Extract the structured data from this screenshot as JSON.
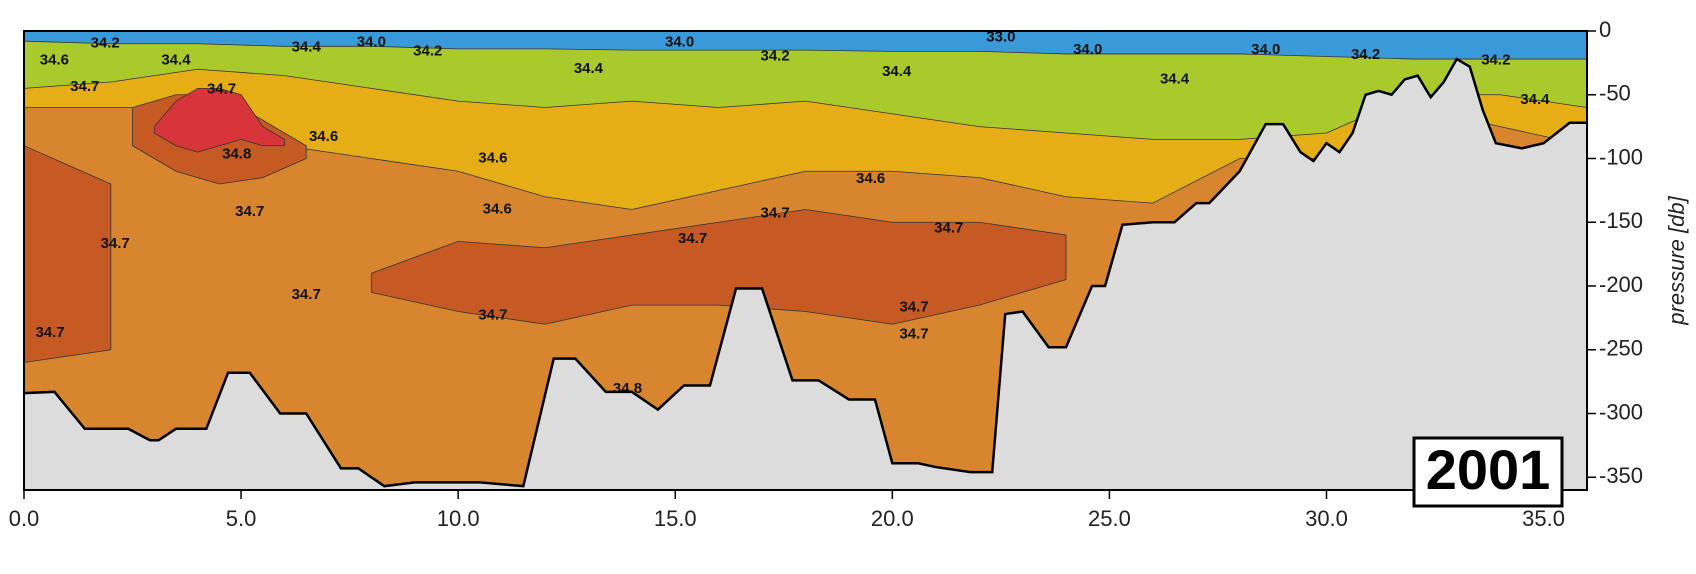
{
  "chart_data": {
    "type": "contour",
    "y_label": "pressure [db]",
    "annotation": "2001",
    "xlim": [
      0,
      36
    ],
    "ylim": [
      -360,
      0
    ],
    "xticks": [
      {
        "value": 0,
        "label": "0.0"
      },
      {
        "value": 5,
        "label": "5.0"
      },
      {
        "value": 10,
        "label": "10.0"
      },
      {
        "value": 15,
        "label": "15.0"
      },
      {
        "value": 20,
        "label": "20.0"
      },
      {
        "value": 25,
        "label": "25.0"
      },
      {
        "value": 30,
        "label": "30.0"
      },
      {
        "value": 35,
        "label": "35.0"
      }
    ],
    "yticks": [
      0,
      -50,
      -100,
      -150,
      -200,
      -250,
      -300,
      -350
    ],
    "fill_color": "#d7862f",
    "layers": {
      "x": [
        0,
        2,
        4,
        6,
        8,
        10,
        12,
        14,
        16,
        18,
        20,
        22,
        24,
        26,
        28,
        30,
        32,
        34,
        36
      ],
      "bands": [
        {
          "color": "#3a9ad9",
          "lower": [
            -8,
            -10,
            -10,
            -12,
            -12,
            -14,
            -14,
            -15,
            -15,
            -15,
            -16,
            -16,
            -18,
            -18,
            -18,
            -20,
            -22,
            -22,
            -22
          ]
        },
        {
          "color": "#a9c92c",
          "lower": [
            -45,
            -40,
            -30,
            -35,
            -45,
            -55,
            -60,
            -55,
            -60,
            -55,
            -65,
            -75,
            -80,
            -85,
            -85,
            -80,
            -50,
            -50,
            -60
          ]
        },
        {
          "color": "#e6ae16",
          "lower": [
            -60,
            -60,
            -60,
            -90,
            -100,
            -110,
            -130,
            -140,
            -125,
            -110,
            -110,
            -115,
            -130,
            -135,
            -100,
            -100,
            -60,
            -75,
            -90
          ]
        }
      ]
    },
    "blobs": [
      {
        "color": "#c65a24",
        "x": [
          0,
          2,
          4,
          6,
          8,
          10,
          12,
          14,
          16,
          18,
          20,
          22,
          24,
          26
        ],
        "upper": [
          -90,
          -120,
          null,
          null,
          -190,
          -165,
          -170,
          -160,
          -150,
          -140,
          -150,
          -150,
          -160,
          null
        ],
        "lower": [
          -260,
          -250,
          null,
          null,
          -205,
          -220,
          -230,
          -215,
          -215,
          -220,
          -230,
          -215,
          -195,
          null
        ]
      },
      {
        "color": "#c65a24",
        "x": [
          2.5,
          3.5,
          4.5,
          5.5,
          6.5
        ],
        "upper": [
          -60,
          -50,
          -50,
          -70,
          -90
        ],
        "lower": [
          -90,
          -110,
          -120,
          -115,
          -100
        ]
      },
      {
        "color": "#d8353a",
        "x": [
          3,
          3.5,
          4,
          4.5,
          5,
          5.5,
          6
        ],
        "upper": [
          -75,
          -55,
          -45,
          -45,
          -50,
          -75,
          -85
        ],
        "lower": [
          -80,
          -90,
          -95,
          -90,
          -85,
          -90,
          -90
        ]
      }
    ],
    "bathymetry": {
      "color": "#dcdcdc",
      "x": [
        0,
        0.7,
        1.4,
        2.4,
        2.9,
        3.1,
        3.5,
        4.2,
        4.7,
        5.2,
        5.9,
        6.5,
        7.3,
        7.7,
        8.3,
        9.0,
        10.5,
        11.5,
        12.2,
        12.7,
        13.4,
        14.0,
        14.6,
        15.2,
        15.8,
        16.4,
        17.0,
        17.7,
        18.3,
        19.0,
        19.6,
        20.0,
        20.6,
        21.0,
        21.8,
        22.3,
        22.6,
        23.0,
        23.6,
        24.0,
        24.6,
        24.9,
        25.3,
        26.0,
        26.5,
        27.0,
        27.3,
        28.0,
        28.6,
        29.0,
        29.4,
        29.7,
        30.0,
        30.3,
        30.6,
        30.9,
        31.2,
        31.5,
        31.8,
        32.1,
        32.4,
        32.7,
        33.0,
        33.3,
        33.6,
        33.9,
        34.2,
        34.5,
        35.0,
        35.6,
        36
      ],
      "depth": [
        -284,
        -283,
        -312,
        -312,
        -321,
        -321,
        -312,
        -312,
        -268,
        -268,
        -300,
        -300,
        -343,
        -343,
        -357,
        -354,
        -354,
        -357,
        -257,
        -257,
        -283,
        -283,
        -297,
        -278,
        -278,
        -202,
        -202,
        -274,
        -274,
        -289,
        -289,
        -339,
        -339,
        -342,
        -346,
        -346,
        -222,
        -220,
        -248,
        -248,
        -200,
        -200,
        -152,
        -150,
        -150,
        -135,
        -135,
        -110,
        -73,
        -73,
        -95,
        -102,
        -88,
        -95,
        -80,
        -50,
        -47,
        -50,
        -38,
        -35,
        -52,
        -40,
        -22,
        -28,
        -62,
        -88,
        -90,
        -92,
        -88,
        -72,
        -72
      ]
    },
    "contour_labels": [
      {
        "label": "34.2",
        "x": 1.87,
        "y": -10
      },
      {
        "label": "34.6",
        "x": 0.7,
        "y": -23
      },
      {
        "label": "34.4",
        "x": 3.5,
        "y": -23
      },
      {
        "label": "34.4",
        "x": 6.5,
        "y": -13
      },
      {
        "label": "34.0",
        "x": 8.0,
        "y": -9
      },
      {
        "label": "34.2",
        "x": 9.3,
        "y": -16
      },
      {
        "label": "34.7",
        "x": 1.4,
        "y": -44
      },
      {
        "label": "34.7",
        "x": 4.55,
        "y": -46
      },
      {
        "label": "34.6",
        "x": 6.9,
        "y": -83
      },
      {
        "label": "34.8",
        "x": 4.9,
        "y": -97
      },
      {
        "label": "34.6",
        "x": 10.8,
        "y": -100
      },
      {
        "label": "34.7",
        "x": 5.2,
        "y": -142
      },
      {
        "label": "34.6",
        "x": 10.9,
        "y": -140
      },
      {
        "label": "34.7",
        "x": 2.1,
        "y": -167
      },
      {
        "label": "34.7",
        "x": 6.5,
        "y": -207
      },
      {
        "label": "34.7",
        "x": 0.6,
        "y": -237
      },
      {
        "label": "34.0",
        "x": 15.1,
        "y": -9
      },
      {
        "label": "34.4",
        "x": 13.0,
        "y": -30
      },
      {
        "label": "34.2",
        "x": 17.3,
        "y": -20
      },
      {
        "label": "34.4",
        "x": 20.1,
        "y": -32
      },
      {
        "label": "33.0",
        "x": 22.5,
        "y": -5
      },
      {
        "label": "34.0",
        "x": 24.5,
        "y": -15
      },
      {
        "label": "34.4",
        "x": 26.5,
        "y": -38
      },
      {
        "label": "34.0",
        "x": 28.6,
        "y": -15
      },
      {
        "label": "34.2",
        "x": 30.9,
        "y": -19
      },
      {
        "label": "34.2",
        "x": 33.9,
        "y": -23
      },
      {
        "label": "34.4",
        "x": 34.8,
        "y": -54
      },
      {
        "label": "34.6",
        "x": 19.5,
        "y": -116
      },
      {
        "label": "34.7",
        "x": 17.3,
        "y": -143
      },
      {
        "label": "34.7",
        "x": 15.4,
        "y": -163
      },
      {
        "label": "34.7",
        "x": 21.3,
        "y": -155
      },
      {
        "label": "34.7",
        "x": 10.8,
        "y": -223
      },
      {
        "label": "34.7",
        "x": 20.5,
        "y": -217
      },
      {
        "label": "34.7",
        "x": 20.5,
        "y": -238
      },
      {
        "label": "34.8",
        "x": 13.9,
        "y": -281
      }
    ]
  }
}
